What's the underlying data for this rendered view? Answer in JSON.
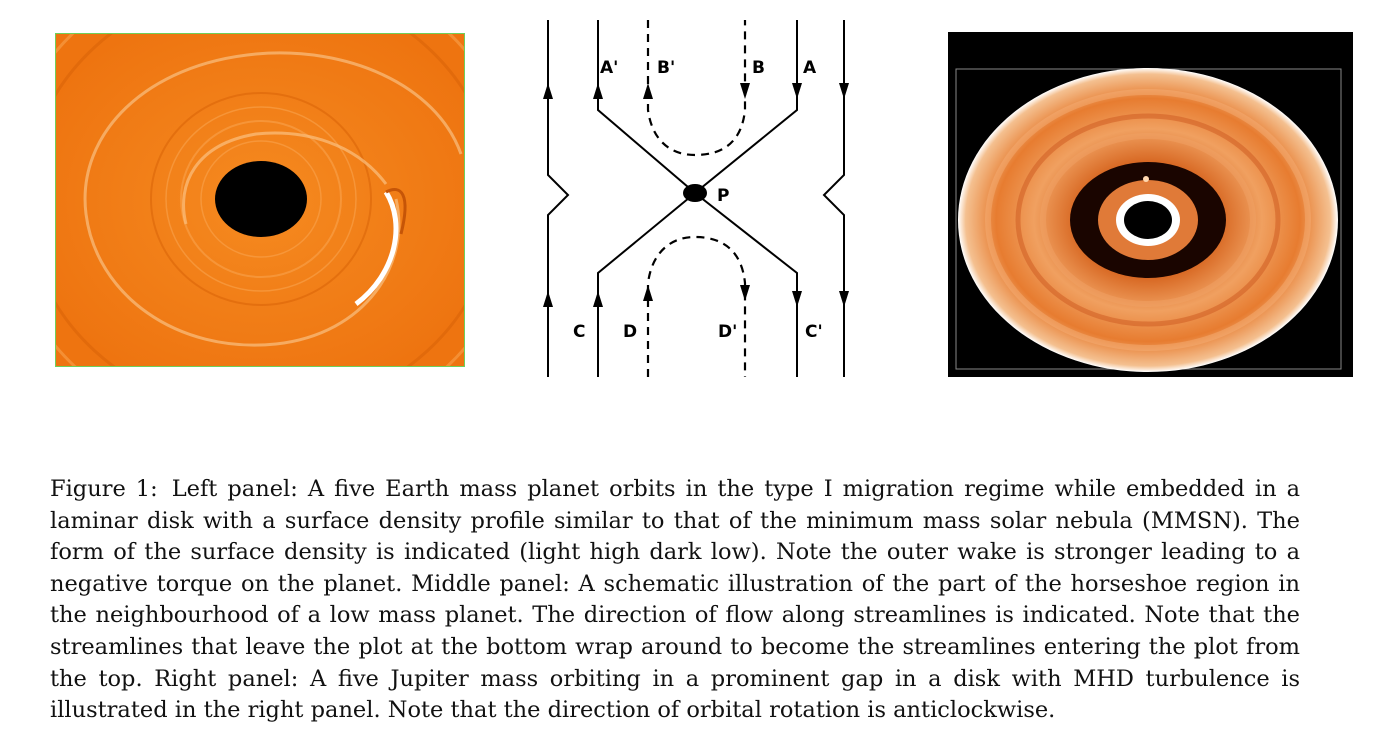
{
  "figure": {
    "left_panel": {},
    "middle_panel": {
      "labels": {
        "a_prime": "A'",
        "b_prime": "B'",
        "b": "B",
        "a": "A",
        "p": "P",
        "c": "C",
        "d": "D",
        "d_prime": "D'",
        "c_prime": "C'"
      }
    },
    "right_panel": {}
  },
  "caption": {
    "label": "Figure 1:",
    "text": "Left panel: A five Earth mass planet orbits in the type I migration regime while embedded in a laminar disk with a surface density profile similar to that of the minimum mass solar nebula (MMSN). The form of the surface density is indicated (light high dark low). Note the outer wake is stronger leading to a negative torque on the planet. Middle panel: A schematic illustration of the part of the horseshoe region in the neighbourhood of a low mass planet. The direction of flow along streamlines is indicated. Note that the streamlines that leave the plot at the bottom wrap around to become the streamlines entering the plot from the top. Right panel: A five Jupiter mass orbiting in a prominent gap in a disk with MHD turbulence is illustrated in the right panel. Note that the direction of orbital rotation is anticlockwise."
  }
}
